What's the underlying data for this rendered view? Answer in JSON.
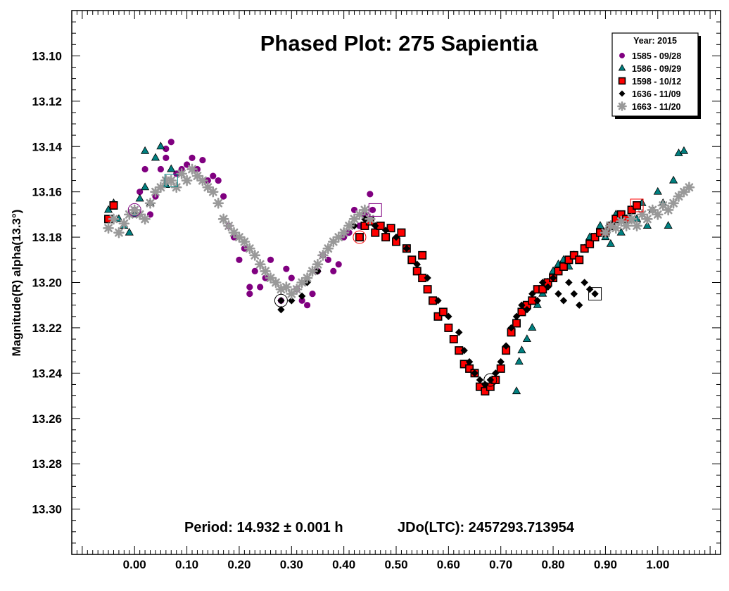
{
  "chart_data": {
    "type": "scatter",
    "title": "Phased Plot: 275 Sapientia",
    "ylabel": "Magnitude(R) alpha(13.3°)",
    "xlabel": "",
    "footer_period": "Period: 14.932 ± 0.001 h",
    "footer_epoch": "JDo(LTC): 2457293.713954",
    "xlim": [
      -0.12,
      1.12
    ],
    "ylim": [
      13.08,
      13.32
    ],
    "y_inverted": true,
    "x_ticks": [
      "0.00",
      "0.10",
      "0.20",
      "0.30",
      "0.40",
      "0.50",
      "0.60",
      "0.70",
      "0.80",
      "0.90",
      "1.00"
    ],
    "y_ticks": [
      "13.10",
      "13.12",
      "13.14",
      "13.16",
      "13.18",
      "13.20",
      "13.22",
      "13.24",
      "13.26",
      "13.28",
      "13.30"
    ],
    "legend_title": "Year: 2015",
    "legend_position": "top-right",
    "series": [
      {
        "name": "1585 - 09/28",
        "marker": "circle",
        "color": "#800080",
        "stroke": "#800080",
        "points": [
          [
            0.0,
            13.168
          ],
          [
            0.01,
            13.16
          ],
          [
            0.02,
            13.15
          ],
          [
            0.03,
            13.17
          ],
          [
            0.04,
            13.162
          ],
          [
            0.05,
            13.15
          ],
          [
            0.06,
            13.145
          ],
          [
            0.06,
            13.141
          ],
          [
            0.07,
            13.138
          ],
          [
            0.08,
            13.152
          ],
          [
            0.09,
            13.15
          ],
          [
            0.1,
            13.148
          ],
          [
            0.11,
            13.145
          ],
          [
            0.12,
            13.15
          ],
          [
            0.13,
            13.146
          ],
          [
            0.14,
            13.155
          ],
          [
            0.15,
            13.153
          ],
          [
            0.16,
            13.155
          ],
          [
            0.17,
            13.162
          ],
          [
            0.18,
            13.175
          ],
          [
            0.19,
            13.18
          ],
          [
            0.2,
            13.19
          ],
          [
            0.21,
            13.185
          ],
          [
            0.22,
            13.202
          ],
          [
            0.22,
            13.205
          ],
          [
            0.23,
            13.195
          ],
          [
            0.24,
            13.202
          ],
          [
            0.25,
            13.198
          ],
          [
            0.26,
            13.19
          ],
          [
            0.28,
            13.208
          ],
          [
            0.29,
            13.194
          ],
          [
            0.3,
            13.198
          ],
          [
            0.31,
            13.203
          ],
          [
            0.32,
            13.208
          ],
          [
            0.33,
            13.21
          ],
          [
            0.34,
            13.205
          ],
          [
            0.35,
            13.195
          ],
          [
            0.36,
            13.188
          ],
          [
            0.37,
            13.19
          ],
          [
            0.38,
            13.195
          ],
          [
            0.39,
            13.192
          ],
          [
            0.4,
            13.18
          ],
          [
            0.41,
            13.178
          ],
          [
            0.42,
            13.168
          ],
          [
            0.43,
            13.175
          ],
          [
            0.44,
            13.17
          ],
          [
            0.45,
            13.161
          ],
          [
            0.455,
            13.168
          ]
        ]
      },
      {
        "name": "1586 - 09/29",
        "marker": "triangle",
        "color": "#008080",
        "stroke": "#000000",
        "points": [
          [
            -0.05,
            13.168
          ],
          [
            -0.04,
            13.165
          ],
          [
            -0.03,
            13.172
          ],
          [
            -0.02,
            13.175
          ],
          [
            -0.01,
            13.178
          ],
          [
            0.0,
            13.17
          ],
          [
            0.01,
            13.163
          ],
          [
            0.02,
            13.158
          ],
          [
            0.02,
            13.142
          ],
          [
            0.03,
            13.165
          ],
          [
            0.04,
            13.145
          ],
          [
            0.05,
            13.14
          ],
          [
            0.06,
            13.157
          ],
          [
            0.07,
            13.15
          ],
          [
            0.73,
            13.248
          ],
          [
            0.735,
            13.235
          ],
          [
            0.74,
            13.23
          ],
          [
            0.75,
            13.225
          ],
          [
            0.76,
            13.22
          ],
          [
            0.77,
            13.21
          ],
          [
            0.78,
            13.205
          ],
          [
            0.79,
            13.2
          ],
          [
            0.8,
            13.195
          ],
          [
            0.81,
            13.192
          ],
          [
            0.82,
            13.19
          ],
          [
            0.83,
            13.193
          ],
          [
            0.84,
            13.188
          ],
          [
            0.85,
            13.19
          ],
          [
            0.86,
            13.185
          ],
          [
            0.87,
            13.18
          ],
          [
            0.88,
            13.18
          ],
          [
            0.89,
            13.175
          ],
          [
            0.9,
            13.18
          ],
          [
            0.91,
            13.183
          ],
          [
            0.92,
            13.17
          ],
          [
            0.93,
            13.178
          ],
          [
            0.94,
            13.172
          ],
          [
            0.95,
            13.168
          ],
          [
            0.96,
            13.172
          ],
          [
            0.97,
            13.165
          ],
          [
            0.98,
            13.175
          ],
          [
            0.99,
            13.168
          ],
          [
            1.0,
            13.16
          ],
          [
            1.01,
            13.165
          ],
          [
            1.02,
            13.175
          ],
          [
            1.03,
            13.155
          ],
          [
            1.04,
            13.143
          ],
          [
            1.05,
            13.142
          ]
        ]
      },
      {
        "name": "1598 - 10/12",
        "marker": "square",
        "color": "#ff0000",
        "stroke": "#000000",
        "points": [
          [
            -0.05,
            13.172
          ],
          [
            -0.04,
            13.166
          ],
          [
            0.43,
            13.18
          ],
          [
            0.44,
            13.175
          ],
          [
            0.45,
            13.173
          ],
          [
            0.46,
            13.178
          ],
          [
            0.47,
            13.175
          ],
          [
            0.48,
            13.18
          ],
          [
            0.49,
            13.176
          ],
          [
            0.5,
            13.182
          ],
          [
            0.51,
            13.178
          ],
          [
            0.52,
            13.185
          ],
          [
            0.53,
            13.19
          ],
          [
            0.54,
            13.195
          ],
          [
            0.55,
            13.198
          ],
          [
            0.55,
            13.188
          ],
          [
            0.56,
            13.203
          ],
          [
            0.57,
            13.208
          ],
          [
            0.58,
            13.215
          ],
          [
            0.59,
            13.213
          ],
          [
            0.6,
            13.22
          ],
          [
            0.61,
            13.225
          ],
          [
            0.62,
            13.23
          ],
          [
            0.63,
            13.236
          ],
          [
            0.64,
            13.238
          ],
          [
            0.65,
            13.24
          ],
          [
            0.66,
            13.246
          ],
          [
            0.67,
            13.248
          ],
          [
            0.68,
            13.246
          ],
          [
            0.69,
            13.243
          ],
          [
            0.7,
            13.238
          ],
          [
            0.71,
            13.23
          ],
          [
            0.72,
            13.222
          ],
          [
            0.73,
            13.218
          ],
          [
            0.74,
            13.213
          ],
          [
            0.75,
            13.21
          ],
          [
            0.76,
            13.208
          ],
          [
            0.77,
            13.203
          ],
          [
            0.78,
            13.203
          ],
          [
            0.79,
            13.2
          ],
          [
            0.8,
            13.198
          ],
          [
            0.81,
            13.195
          ],
          [
            0.82,
            13.193
          ],
          [
            0.83,
            13.19
          ],
          [
            0.84,
            13.188
          ],
          [
            0.85,
            13.19
          ],
          [
            0.86,
            13.185
          ],
          [
            0.87,
            13.183
          ],
          [
            0.88,
            13.18
          ],
          [
            0.89,
            13.178
          ],
          [
            0.9,
            13.178
          ],
          [
            0.91,
            13.175
          ],
          [
            0.92,
            13.172
          ],
          [
            0.93,
            13.17
          ],
          [
            0.94,
            13.172
          ],
          [
            0.95,
            13.168
          ],
          [
            0.96,
            13.166
          ]
        ]
      },
      {
        "name": "1636 - 11/09",
        "marker": "diamond",
        "color": "#000000",
        "stroke": "#000000",
        "points": [
          [
            0.28,
            13.208
          ],
          [
            0.28,
            13.212
          ],
          [
            0.3,
            13.208
          ],
          [
            0.32,
            13.206
          ],
          [
            0.33,
            13.2
          ],
          [
            0.35,
            13.195
          ],
          [
            0.42,
            13.175
          ],
          [
            0.44,
            13.172
          ],
          [
            0.46,
            13.175
          ],
          [
            0.48,
            13.177
          ],
          [
            0.5,
            13.18
          ],
          [
            0.52,
            13.185
          ],
          [
            0.54,
            13.192
          ],
          [
            0.56,
            13.198
          ],
          [
            0.58,
            13.208
          ],
          [
            0.6,
            13.215
          ],
          [
            0.62,
            13.222
          ],
          [
            0.63,
            13.23
          ],
          [
            0.64,
            13.235
          ],
          [
            0.65,
            13.24
          ],
          [
            0.66,
            13.243
          ],
          [
            0.67,
            13.245
          ],
          [
            0.68,
            13.243
          ],
          [
            0.69,
            13.24
          ],
          [
            0.7,
            13.235
          ],
          [
            0.71,
            13.228
          ],
          [
            0.72,
            13.22
          ],
          [
            0.73,
            13.215
          ],
          [
            0.74,
            13.21
          ],
          [
            0.75,
            13.212
          ],
          [
            0.76,
            13.205
          ],
          [
            0.77,
            13.208
          ],
          [
            0.78,
            13.2
          ],
          [
            0.79,
            13.202
          ],
          [
            0.8,
            13.198
          ],
          [
            0.81,
            13.205
          ],
          [
            0.82,
            13.208
          ],
          [
            0.83,
            13.2
          ],
          [
            0.84,
            13.205
          ],
          [
            0.85,
            13.21
          ],
          [
            0.86,
            13.2
          ],
          [
            0.87,
            13.203
          ],
          [
            0.88,
            13.205
          ]
        ]
      },
      {
        "name": "1663 - 11/20",
        "marker": "star",
        "color": "#999999",
        "stroke": "#999999",
        "points": [
          [
            -0.05,
            13.176
          ],
          [
            -0.04,
            13.172
          ],
          [
            -0.03,
            13.178
          ],
          [
            -0.02,
            13.174
          ],
          [
            -0.01,
            13.17
          ],
          [
            0.0,
            13.168
          ],
          [
            0.01,
            13.17
          ],
          [
            0.02,
            13.172
          ],
          [
            0.03,
            13.165
          ],
          [
            0.04,
            13.16
          ],
          [
            0.05,
            13.158
          ],
          [
            0.06,
            13.155
          ],
          [
            0.07,
            13.155
          ],
          [
            0.08,
            13.158
          ],
          [
            0.09,
            13.152
          ],
          [
            0.1,
            13.155
          ],
          [
            0.11,
            13.15
          ],
          [
            0.12,
            13.153
          ],
          [
            0.13,
            13.155
          ],
          [
            0.14,
            13.158
          ],
          [
            0.15,
            13.16
          ],
          [
            0.16,
            13.165
          ],
          [
            0.17,
            13.172
          ],
          [
            0.18,
            13.175
          ],
          [
            0.19,
            13.178
          ],
          [
            0.2,
            13.18
          ],
          [
            0.21,
            13.182
          ],
          [
            0.22,
            13.185
          ],
          [
            0.23,
            13.188
          ],
          [
            0.24,
            13.192
          ],
          [
            0.25,
            13.195
          ],
          [
            0.26,
            13.198
          ],
          [
            0.27,
            13.2
          ],
          [
            0.28,
            13.203
          ],
          [
            0.29,
            13.202
          ],
          [
            0.3,
            13.205
          ],
          [
            0.31,
            13.203
          ],
          [
            0.32,
            13.2
          ],
          [
            0.33,
            13.198
          ],
          [
            0.34,
            13.195
          ],
          [
            0.35,
            13.192
          ],
          [
            0.36,
            13.188
          ],
          [
            0.37,
            13.185
          ],
          [
            0.38,
            13.182
          ],
          [
            0.39,
            13.18
          ],
          [
            0.4,
            13.178
          ],
          [
            0.41,
            13.175
          ],
          [
            0.42,
            13.172
          ],
          [
            0.43,
            13.17
          ],
          [
            0.44,
            13.168
          ],
          [
            0.45,
            13.172
          ],
          [
            0.9,
            13.178
          ],
          [
            0.91,
            13.175
          ],
          [
            0.92,
            13.176
          ],
          [
            0.93,
            13.173
          ],
          [
            0.94,
            13.175
          ],
          [
            0.95,
            13.172
          ],
          [
            0.96,
            13.175
          ],
          [
            0.97,
            13.17
          ],
          [
            0.98,
            13.172
          ],
          [
            0.99,
            13.168
          ],
          [
            1.0,
            13.17
          ],
          [
            1.01,
            13.166
          ],
          [
            1.02,
            13.168
          ],
          [
            1.03,
            13.165
          ],
          [
            1.04,
            13.162
          ],
          [
            1.05,
            13.16
          ],
          [
            1.06,
            13.158
          ]
        ]
      }
    ],
    "highlight_markers": [
      {
        "shape": "circle",
        "color": "#800080",
        "x": 0.0,
        "y": 13.168
      },
      {
        "shape": "square",
        "color": "#008080",
        "x": 0.07,
        "y": 13.155
      },
      {
        "shape": "circle",
        "color": "#000000",
        "x": 0.28,
        "y": 13.208
      },
      {
        "shape": "circle",
        "color": "#ff0000",
        "x": 0.43,
        "y": 13.18
      },
      {
        "shape": "square",
        "color": "#800080",
        "x": 0.46,
        "y": 13.168
      },
      {
        "shape": "circle",
        "color": "#000000",
        "x": 0.68,
        "y": 13.243
      },
      {
        "shape": "square",
        "color": "#000000",
        "x": 0.88,
        "y": 13.205
      },
      {
        "shape": "square",
        "color": "#ff0000",
        "x": 0.96,
        "y": 13.166
      }
    ]
  }
}
